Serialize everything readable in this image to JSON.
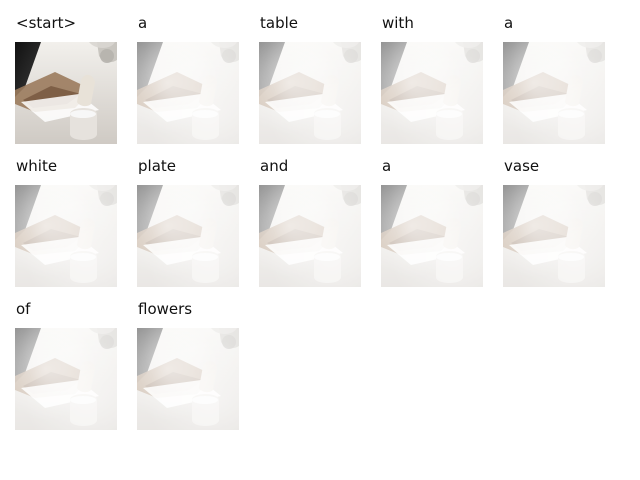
{
  "tokens": [
    "<start>",
    "a",
    "table",
    "with",
    "a",
    "white",
    "plate",
    "and",
    "a",
    "vase",
    "of",
    "flowers"
  ],
  "colors": {
    "background": "#ffffff",
    "text": "#111111",
    "dark": "#1b1b1b",
    "wood": "#8b6b4f",
    "cloth": "#efe9e3"
  }
}
